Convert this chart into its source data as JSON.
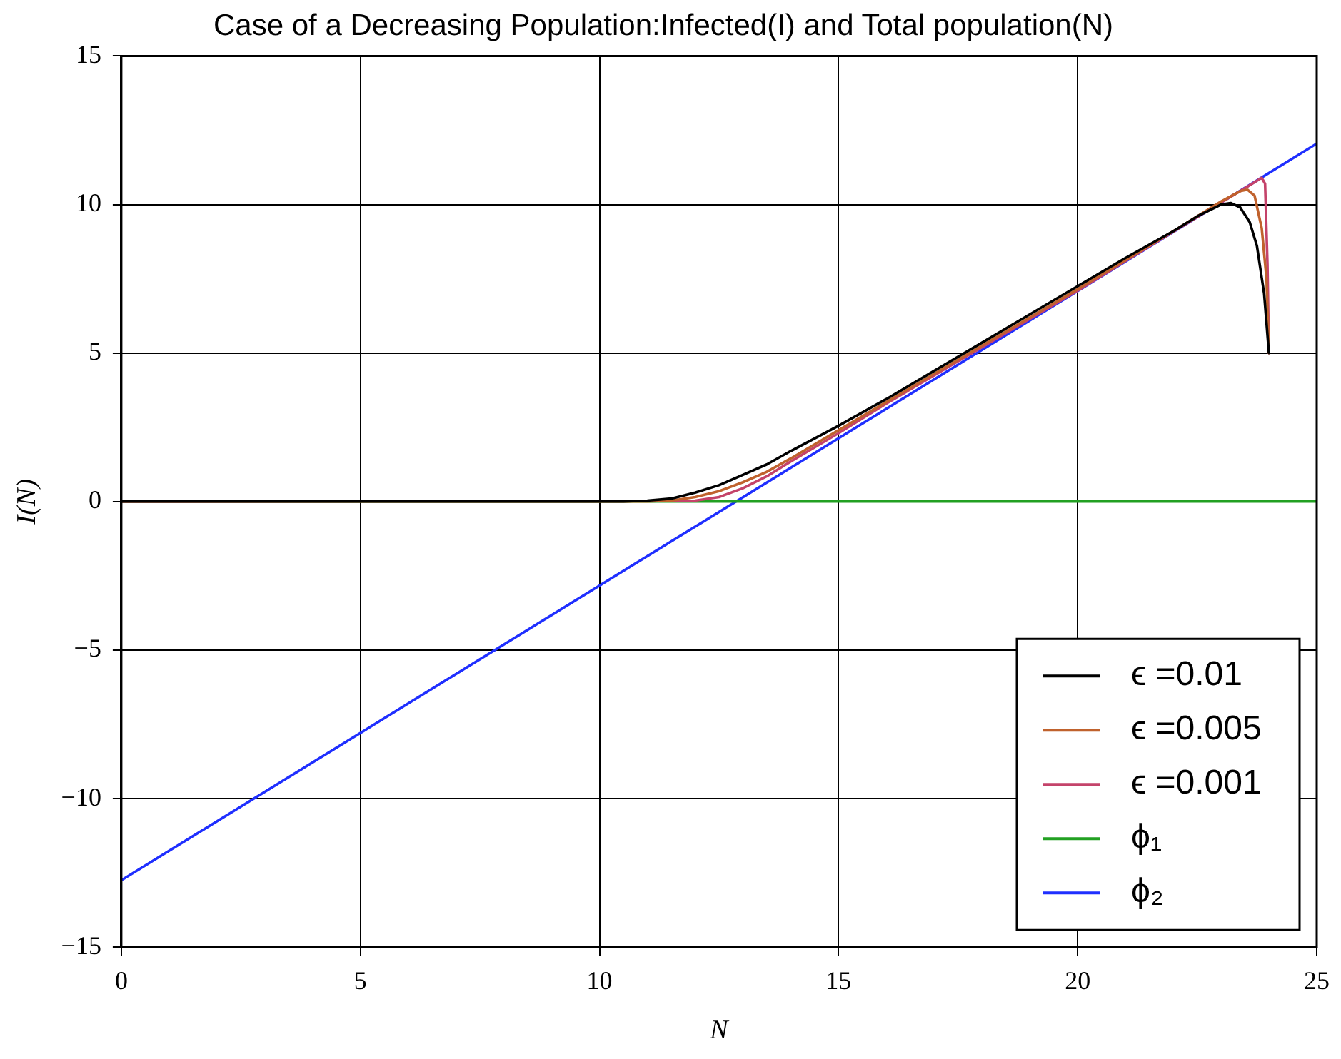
{
  "chart_data": {
    "type": "line",
    "title": "Case of a Decreasing Population:Infected(I) and Total population(N)",
    "xlabel": "N",
    "ylabel": "I(N)",
    "xlim": [
      0,
      25
    ],
    "xticks": [
      0,
      5,
      10,
      15,
      20,
      25
    ],
    "ylim": [
      -15,
      15
    ],
    "yticks": [
      -15,
      -10,
      -5,
      0,
      5,
      10,
      15
    ],
    "grid": true,
    "legend": "bottom right",
    "marker": "none",
    "line_style": "solid",
    "series": [
      {
        "name": "ϵ =0.01",
        "color": "#000000",
        "x": [
          0,
          10.5,
          11,
          11.5,
          12,
          12.5,
          13,
          13.5,
          14,
          15,
          16,
          17,
          18,
          19,
          20,
          21,
          22,
          22.5,
          23,
          23.2,
          23.4,
          23.6,
          23.75,
          23.9,
          24
        ],
        "values": [
          0,
          0,
          0.03,
          0.1,
          0.3,
          0.55,
          0.9,
          1.25,
          1.7,
          2.55,
          3.45,
          4.4,
          5.35,
          6.3,
          7.25,
          8.2,
          9.1,
          9.6,
          10,
          10.05,
          9.9,
          9.4,
          8.6,
          7,
          5
        ]
      },
      {
        "name": "ϵ =0.005",
        "color": "#c0622d",
        "x": [
          0,
          11,
          11.5,
          12,
          12.5,
          13,
          13.5,
          14,
          15,
          16,
          17,
          18,
          19,
          20,
          21,
          22,
          23,
          23.4,
          23.55,
          23.7,
          23.85,
          23.95,
          24
        ],
        "values": [
          0,
          0,
          0.03,
          0.15,
          0.35,
          0.65,
          1,
          1.45,
          2.4,
          3.35,
          4.3,
          5.25,
          6.2,
          7.15,
          8.13,
          9.1,
          10.1,
          10.45,
          10.5,
          10.3,
          9.2,
          7.5,
          5
        ]
      },
      {
        "name": "ϵ =0.001",
        "color": "#c4436a",
        "x": [
          0,
          12,
          12.5,
          13,
          13.5,
          14,
          15,
          16,
          17,
          18,
          19,
          20,
          21,
          22,
          23,
          23.5,
          23.85,
          23.92,
          23.97,
          24
        ],
        "values": [
          0,
          0.03,
          0.15,
          0.45,
          0.85,
          1.35,
          2.3,
          3.3,
          4.25,
          5.2,
          6.15,
          7.1,
          8.1,
          9.08,
          10.07,
          10.55,
          10.9,
          10.7,
          8,
          5
        ]
      },
      {
        "name": "ϕ₁",
        "color": "#22a022",
        "x": [
          0,
          25
        ],
        "values": [
          0,
          0
        ]
      },
      {
        "name": "ϕ₂",
        "color": "#1f2fff",
        "x": [
          0,
          25
        ],
        "values": [
          -12.75,
          12.05
        ]
      }
    ]
  }
}
